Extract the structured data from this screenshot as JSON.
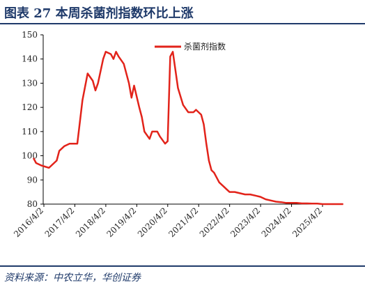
{
  "header": {
    "title": "图表 27   本周杀菌剂指数环比上涨"
  },
  "footer": {
    "source": "资料来源：中农立华，华创证券"
  },
  "colors": {
    "series": "#e2231a",
    "heading": "#1f3a6a",
    "axis": "#000000"
  },
  "chart_data": {
    "type": "line",
    "ylim": [
      80,
      150
    ],
    "yticks": [
      "80",
      "90",
      "100",
      "110",
      "120",
      "130",
      "140",
      "150"
    ],
    "xticks": [
      "2016/4/2",
      "2017/4/2",
      "2018/4/2",
      "2019/4/2",
      "2020/4/2",
      "2021/4/2",
      "2022/4/2",
      "2023/4/2",
      "2024/4/2",
      "2025/4/2"
    ],
    "legend": {
      "position": "top-center"
    },
    "series": [
      {
        "name": "杀菌剂指数",
        "x": [
          "2015-12",
          "2016-01",
          "2016-03",
          "2016-06",
          "2016-09",
          "2016-10",
          "2016-12",
          "2017-02",
          "2017-03",
          "2017-05",
          "2017-07",
          "2017-09",
          "2017-11",
          "2017-12",
          "2018-01",
          "2018-03",
          "2018-04",
          "2018-06",
          "2018-07",
          "2018-08",
          "2018-09",
          "2018-11",
          "2019-01",
          "2019-02",
          "2019-03",
          "2019-05",
          "2019-06",
          "2019-07",
          "2019-09",
          "2019-10",
          "2019-12",
          "2020-01",
          "2020-03",
          "2020-04",
          "2020-05",
          "2020-06",
          "2020-08",
          "2020-10",
          "2020-12",
          "2021-02",
          "2021-03",
          "2021-05",
          "2021-06",
          "2021-07",
          "2021-08",
          "2021-09",
          "2021-10",
          "2021-11",
          "2021-12",
          "2022-02",
          "2022-03",
          "2022-04",
          "2022-06",
          "2022-08",
          "2022-10",
          "2022-12",
          "2023-02",
          "2023-04",
          "2023-06",
          "2023-08",
          "2023-10",
          "2023-12",
          "2024-02",
          "2024-04",
          "2024-06",
          "2024-08",
          "2024-10",
          "2024-12",
          "2025-02",
          "2025-04",
          "2025-06",
          "2025-08",
          "2025-10",
          "2025-12"
        ],
        "y": [
          99,
          97,
          96,
          95,
          98,
          102,
          104,
          105,
          105,
          105,
          123,
          134,
          131,
          127,
          130,
          140,
          143,
          142,
          140,
          143,
          141,
          138,
          130,
          124,
          129,
          120,
          116,
          110,
          107,
          110,
          110,
          108,
          105,
          106,
          141,
          143,
          128,
          121,
          118,
          118,
          119,
          117,
          113,
          105,
          98,
          94,
          93,
          91,
          89,
          87,
          86,
          85,
          85,
          84.5,
          84,
          84,
          83.5,
          83,
          82,
          81.5,
          81,
          80.8,
          80.5,
          80.5,
          80.5,
          80.3,
          80.3,
          80.2,
          80.2,
          80,
          80,
          80,
          80,
          80
        ]
      }
    ]
  }
}
